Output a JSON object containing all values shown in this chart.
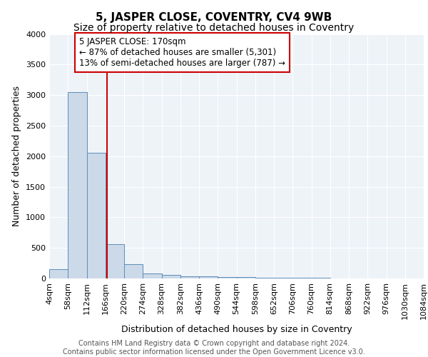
{
  "title": "5, JASPER CLOSE, COVENTRY, CV4 9WB",
  "subtitle": "Size of property relative to detached houses in Coventry",
  "xlabel": "Distribution of detached houses by size in Coventry",
  "ylabel": "Number of detached properties",
  "bin_edges": [
    4,
    58,
    112,
    166,
    220,
    274,
    328,
    382,
    436,
    490,
    544,
    598,
    652,
    706,
    760,
    814,
    868,
    922,
    976,
    1030,
    1084
  ],
  "bar_heights": [
    150,
    3050,
    2060,
    560,
    230,
    80,
    60,
    40,
    30,
    25,
    20,
    15,
    10,
    10,
    8,
    5,
    5,
    5,
    3,
    3
  ],
  "bar_facecolor": "#ccd9e8",
  "bar_edgecolor": "#5b8db8",
  "property_size": 170,
  "red_line_color": "#cc0000",
  "annotation_line1": "5 JASPER CLOSE: 170sqm",
  "annotation_line2": "← 87% of detached houses are smaller (5,301)",
  "annotation_line3": "13% of semi-detached houses are larger (787) →",
  "annotation_box_color": "white",
  "annotation_box_edge": "#cc0000",
  "footer_text": "Contains HM Land Registry data © Crown copyright and database right 2024.\nContains public sector information licensed under the Open Government Licence v3.0.",
  "background_color": "#eef3f8",
  "ylim": [
    0,
    4000
  ],
  "xlim": [
    4,
    1084
  ],
  "title_fontsize": 11,
  "subtitle_fontsize": 10,
  "ylabel_fontsize": 9,
  "xlabel_fontsize": 9,
  "tick_fontsize": 8,
  "footer_fontsize": 7,
  "annotation_fontsize": 8.5
}
